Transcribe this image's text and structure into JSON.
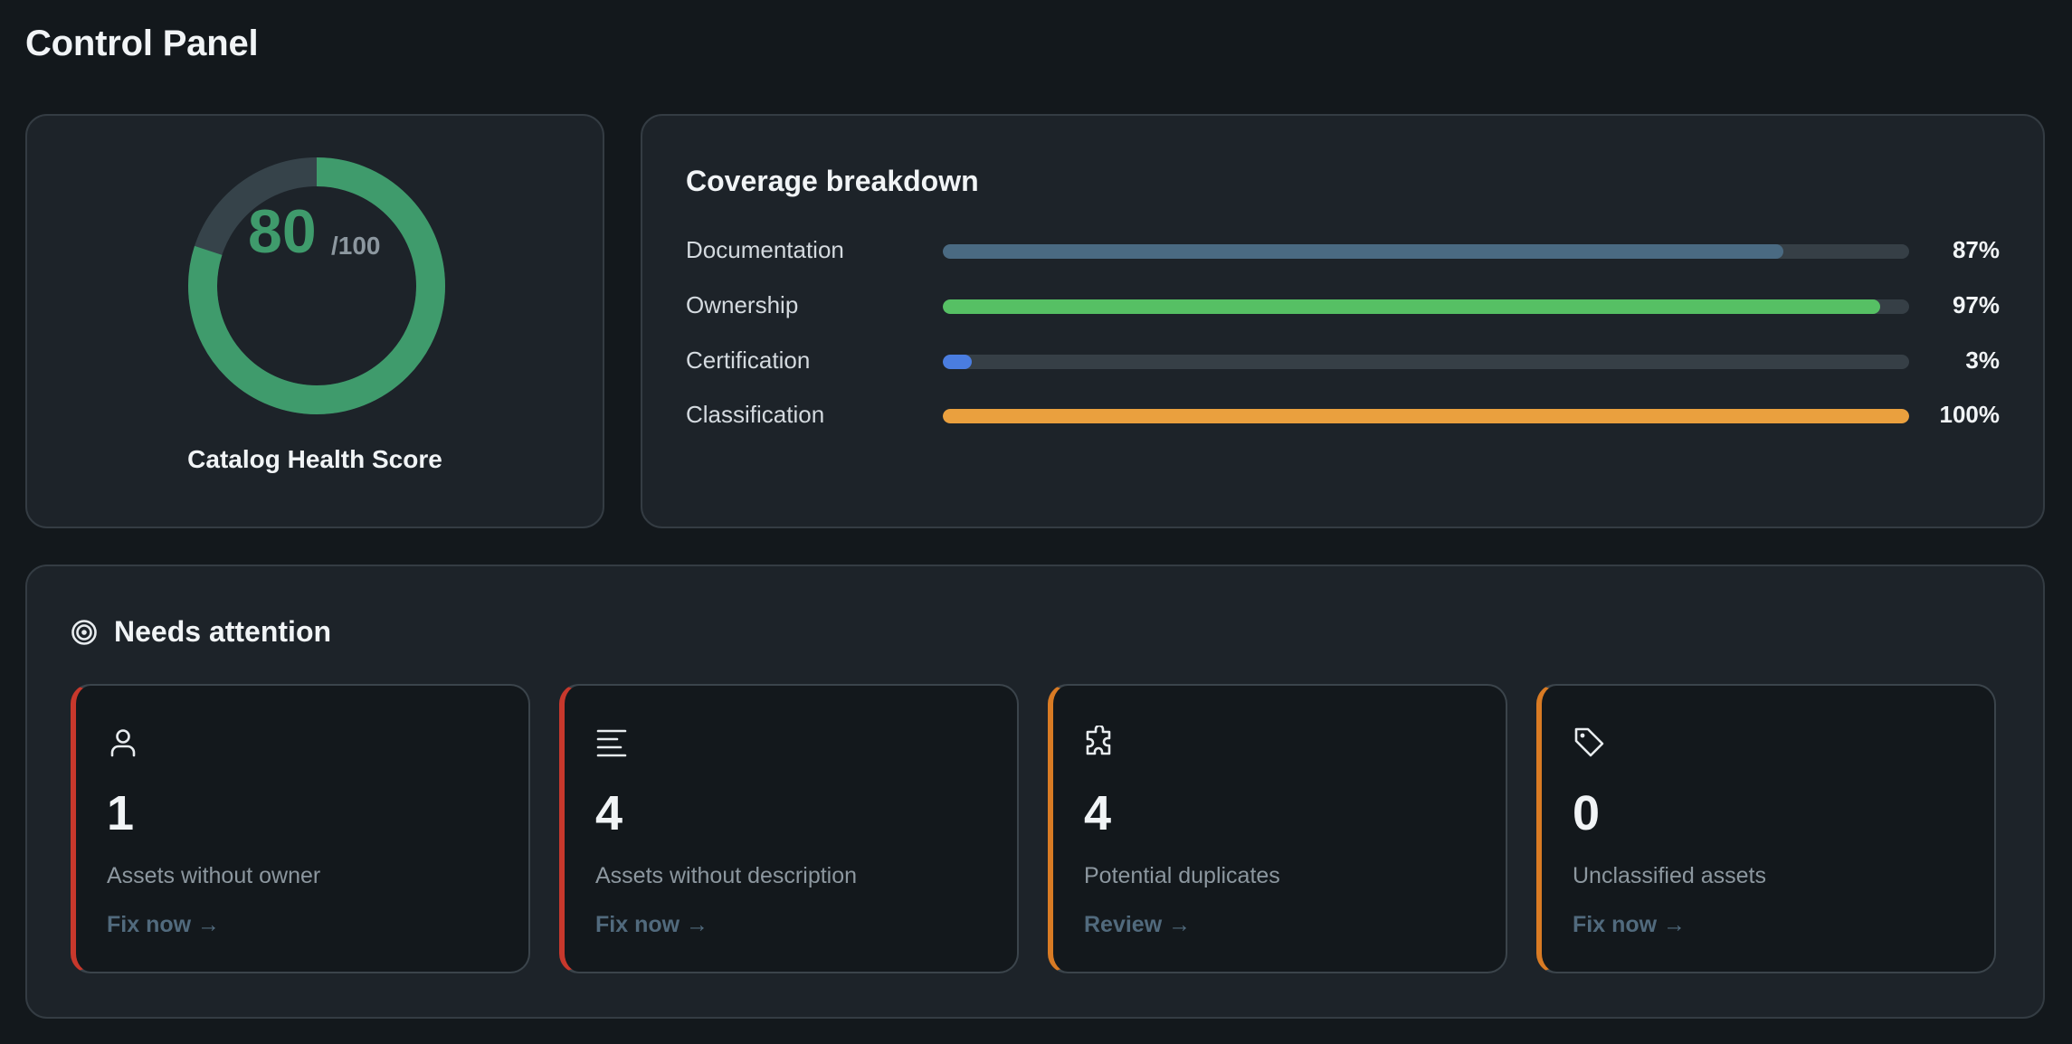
{
  "page": {
    "title": "Control Panel"
  },
  "health": {
    "score": 80,
    "score_text": "80",
    "max_text": "/100",
    "label": "Catalog Health Score",
    "color": "#3f9b6c",
    "track_color": "#36434a"
  },
  "coverage": {
    "title": "Coverage breakdown",
    "metrics": [
      {
        "label": "Documentation",
        "percent": 87,
        "value_text": "87%",
        "color": "#4a6a82"
      },
      {
        "label": "Ownership",
        "percent": 97,
        "value_text": "97%",
        "color": "#56c064"
      },
      {
        "label": "Certification",
        "percent": 3,
        "value_text": "3%",
        "color": "#4a7de0"
      },
      {
        "label": "Classification",
        "percent": 100,
        "value_text": "100%",
        "color": "#eaa03e"
      }
    ]
  },
  "attention": {
    "title": "Needs attention",
    "icon": "target-icon",
    "tiles": [
      {
        "icon": "user-icon",
        "count": "1",
        "label": "Assets without owner",
        "action": "Fix now →",
        "accent": "#c8382c"
      },
      {
        "icon": "text-lines-icon",
        "count": "4",
        "label": "Assets without description",
        "action": "Fix now →",
        "accent": "#c8382c"
      },
      {
        "icon": "puzzle-icon",
        "count": "4",
        "label": "Potential duplicates",
        "action": "Review →",
        "accent": "#d97b24"
      },
      {
        "icon": "tag-icon",
        "count": "0",
        "label": "Unclassified assets",
        "action": "Fix now →",
        "accent": "#d97b24"
      }
    ]
  }
}
